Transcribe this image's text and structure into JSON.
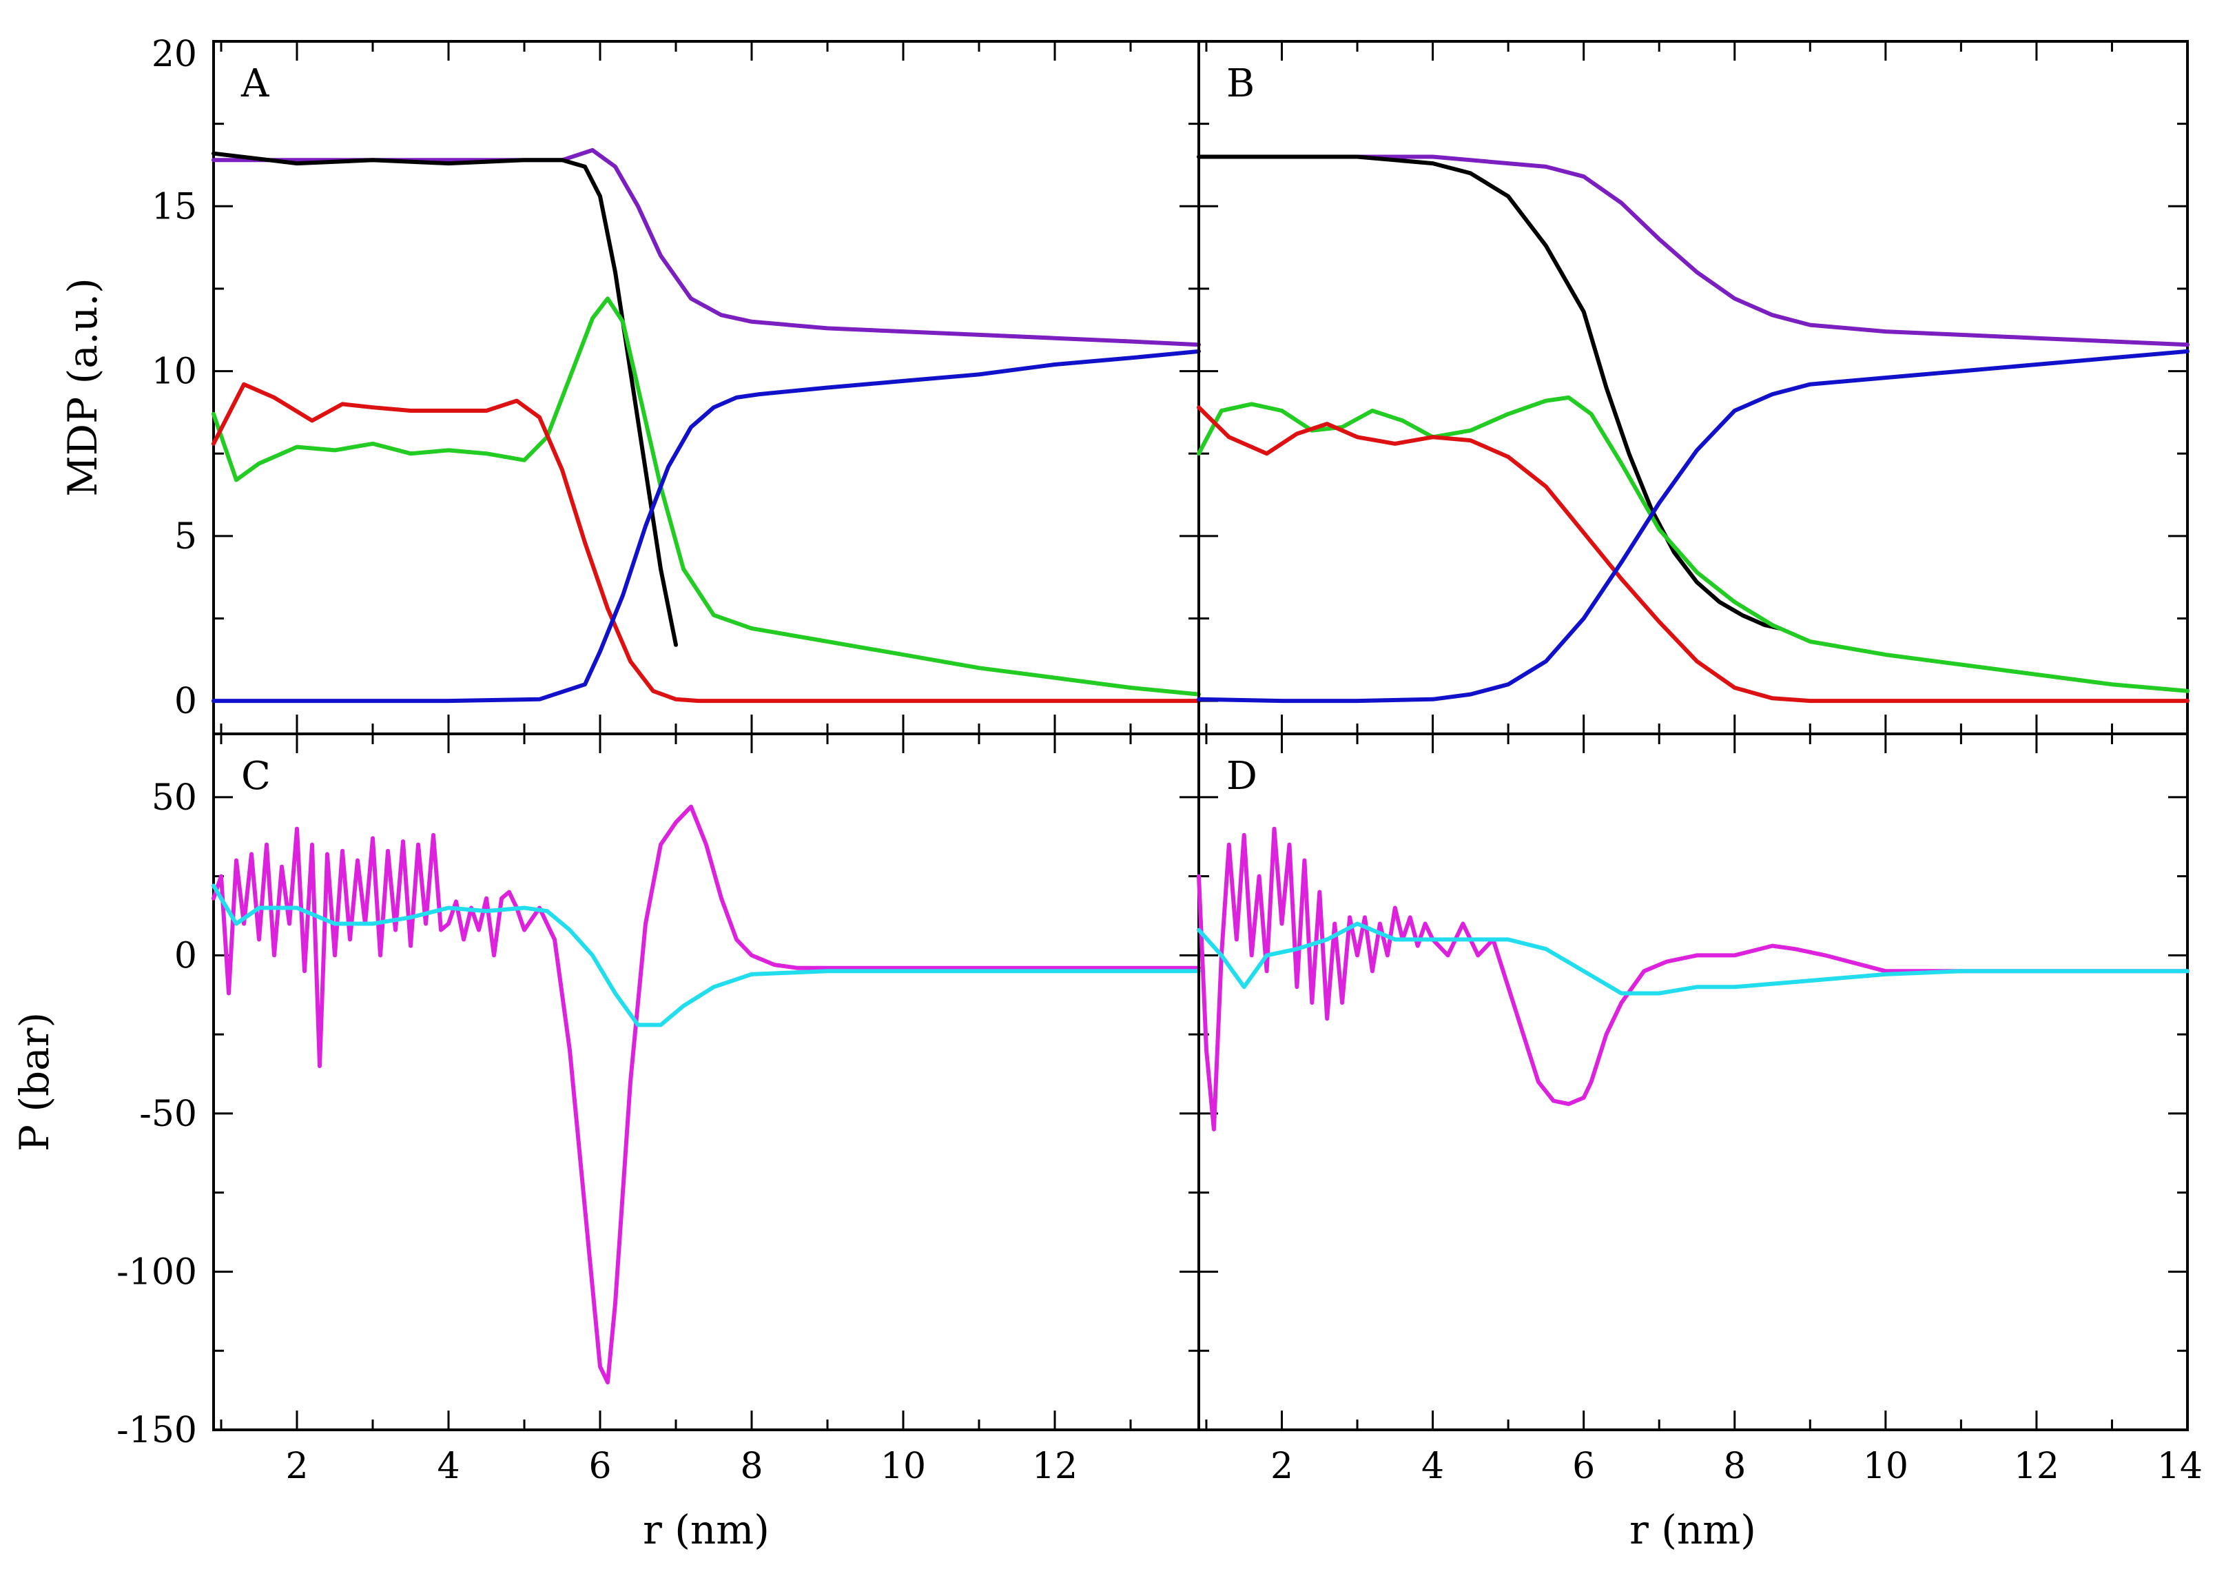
{
  "chart_data": [
    {
      "panel": "A",
      "type": "line",
      "label": "A",
      "xlabel": "",
      "ylabel": "MDP (a.u.)",
      "xlim": [
        0.9,
        13.9
      ],
      "ylim": [
        -1,
        20
      ],
      "y_ticks": [
        0,
        5,
        10,
        15,
        20
      ],
      "y_tick_labels": [
        "0",
        "5",
        "10",
        "15",
        "20"
      ],
      "series": [
        {
          "name": "purple",
          "color": "#7b1fc0",
          "x": [
            0.9,
            2,
            3,
            4,
            5,
            5.5,
            5.9,
            6.2,
            6.5,
            6.8,
            7.2,
            7.6,
            8,
            9,
            10,
            11,
            12,
            13,
            13.9
          ],
          "y": [
            16.4,
            16.4,
            16.4,
            16.4,
            16.4,
            16.4,
            16.7,
            16.2,
            15.0,
            13.5,
            12.2,
            11.7,
            11.5,
            11.3,
            11.2,
            11.1,
            11.0,
            10.9,
            10.8
          ]
        },
        {
          "name": "black",
          "color": "#000000",
          "x": [
            0.9,
            2,
            3,
            4,
            5,
            5.5,
            5.8,
            6.0,
            6.2,
            6.4,
            6.6,
            6.8,
            7.0
          ],
          "y": [
            16.6,
            16.3,
            16.4,
            16.3,
            16.4,
            16.4,
            16.2,
            15.3,
            13.0,
            10.0,
            7.0,
            4.0,
            1.7
          ]
        },
        {
          "name": "green",
          "color": "#22cc22",
          "x": [
            0.9,
            1.2,
            1.5,
            2,
            2.5,
            3,
            3.5,
            4,
            4.5,
            5,
            5.3,
            5.6,
            5.9,
            6.1,
            6.3,
            6.5,
            6.8,
            7.1,
            7.5,
            8,
            9,
            10,
            11,
            12,
            13,
            13.9
          ],
          "y": [
            8.7,
            6.7,
            7.2,
            7.7,
            7.6,
            7.8,
            7.5,
            7.6,
            7.5,
            7.3,
            8.0,
            9.8,
            11.6,
            12.2,
            11.5,
            9.5,
            6.5,
            4.0,
            2.6,
            2.2,
            1.8,
            1.4,
            1.0,
            0.7,
            0.4,
            0.2
          ]
        },
        {
          "name": "red",
          "color": "#dd1111",
          "x": [
            0.9,
            1.3,
            1.7,
            2.2,
            2.6,
            3,
            3.5,
            4,
            4.5,
            4.9,
            5.2,
            5.5,
            5.8,
            6.1,
            6.4,
            6.7,
            7.0,
            7.3,
            8,
            10,
            12,
            13.9
          ],
          "y": [
            7.8,
            9.6,
            9.2,
            8.5,
            9.0,
            8.9,
            8.8,
            8.8,
            8.8,
            9.1,
            8.6,
            7.0,
            4.8,
            2.8,
            1.2,
            0.3,
            0.05,
            0.0,
            0.0,
            0.0,
            0.0,
            0.0
          ]
        },
        {
          "name": "blue",
          "color": "#1111cc",
          "x": [
            0.9,
            2,
            4,
            5.2,
            5.8,
            6.0,
            6.3,
            6.6,
            6.9,
            7.2,
            7.5,
            7.8,
            8.1,
            9,
            10,
            11,
            12,
            13,
            13.9
          ],
          "y": [
            0.0,
            0.0,
            0.0,
            0.05,
            0.5,
            1.5,
            3.2,
            5.3,
            7.1,
            8.3,
            8.9,
            9.2,
            9.3,
            9.5,
            9.7,
            9.9,
            10.2,
            10.4,
            10.6
          ]
        }
      ]
    },
    {
      "panel": "B",
      "type": "line",
      "label": "B",
      "xlabel": "",
      "ylabel": "",
      "xlim": [
        0.9,
        14
      ],
      "ylim": [
        -1,
        20
      ],
      "series": [
        {
          "name": "purple",
          "color": "#7b1fc0",
          "x": [
            0.9,
            2,
            3,
            4,
            5,
            5.5,
            6,
            6.5,
            7,
            7.5,
            8,
            8.5,
            9,
            10,
            11,
            12,
            13,
            14
          ],
          "y": [
            16.5,
            16.5,
            16.5,
            16.5,
            16.3,
            16.2,
            15.9,
            15.1,
            14.0,
            13.0,
            12.2,
            11.7,
            11.4,
            11.2,
            11.1,
            11.0,
            10.9,
            10.8
          ]
        },
        {
          "name": "black",
          "color": "#000000",
          "x": [
            0.9,
            2,
            3,
            4,
            4.5,
            5,
            5.5,
            6,
            6.3,
            6.6,
            6.9,
            7.2,
            7.5,
            7.8,
            8.1,
            8.4,
            8.6
          ],
          "y": [
            16.5,
            16.5,
            16.5,
            16.3,
            16.0,
            15.3,
            13.8,
            11.8,
            9.5,
            7.5,
            5.8,
            4.5,
            3.6,
            3.0,
            2.6,
            2.3,
            2.2
          ]
        },
        {
          "name": "green",
          "color": "#22cc22",
          "x": [
            0.9,
            1.2,
            1.6,
            2,
            2.4,
            2.8,
            3.2,
            3.6,
            4,
            4.5,
            5,
            5.5,
            5.8,
            6.1,
            6.5,
            7,
            7.5,
            8,
            8.5,
            9,
            10,
            11,
            12,
            13,
            14
          ],
          "y": [
            7.5,
            8.8,
            9.0,
            8.8,
            8.2,
            8.3,
            8.8,
            8.5,
            8.0,
            8.2,
            8.7,
            9.1,
            9.2,
            8.7,
            7.2,
            5.2,
            3.9,
            3.0,
            2.3,
            1.8,
            1.4,
            1.1,
            0.8,
            0.5,
            0.3
          ]
        },
        {
          "name": "red",
          "color": "#dd1111",
          "x": [
            0.9,
            1.3,
            1.8,
            2.2,
            2.6,
            3,
            3.5,
            4,
            4.5,
            5,
            5.5,
            6,
            6.5,
            7,
            7.5,
            8,
            8.5,
            9,
            10,
            12,
            14
          ],
          "y": [
            8.9,
            8.0,
            7.5,
            8.1,
            8.4,
            8.0,
            7.8,
            8.0,
            7.9,
            7.4,
            6.5,
            5.1,
            3.7,
            2.4,
            1.2,
            0.4,
            0.08,
            0.0,
            0.0,
            0.0,
            0.0
          ]
        },
        {
          "name": "blue",
          "color": "#1111cc",
          "x": [
            0.9,
            2,
            3,
            4,
            4.5,
            5,
            5.5,
            6,
            6.5,
            7,
            7.5,
            8,
            8.5,
            9,
            10,
            11,
            12,
            13,
            14
          ],
          "y": [
            0.05,
            0.0,
            0.0,
            0.05,
            0.2,
            0.5,
            1.2,
            2.5,
            4.2,
            6.0,
            7.6,
            8.8,
            9.3,
            9.6,
            9.8,
            10.0,
            10.2,
            10.4,
            10.6
          ]
        }
      ]
    },
    {
      "panel": "C",
      "type": "line",
      "label": "C",
      "xlabel": "r (nm)",
      "ylabel": "P (bar)",
      "xlim": [
        0.9,
        13.9
      ],
      "ylim": [
        -150,
        70
      ],
      "x_ticks": [
        2,
        4,
        6,
        8,
        10,
        12
      ],
      "x_tick_labels": [
        "2",
        "4",
        "6",
        "8",
        "10",
        "12"
      ],
      "y_ticks": [
        50,
        0,
        -50,
        -100,
        -150
      ],
      "y_tick_labels": [
        "50",
        "0",
        "-50",
        "-100",
        "-150"
      ],
      "series": [
        {
          "name": "magenta",
          "color": "#dd22dd",
          "x": [
            0.9,
            1.0,
            1.1,
            1.2,
            1.3,
            1.4,
            1.5,
            1.6,
            1.7,
            1.8,
            1.9,
            2.0,
            2.1,
            2.2,
            2.3,
            2.4,
            2.5,
            2.6,
            2.7,
            2.8,
            2.9,
            3.0,
            3.1,
            3.2,
            3.3,
            3.4,
            3.5,
            3.6,
            3.7,
            3.8,
            3.9,
            4.0,
            4.1,
            4.2,
            4.3,
            4.4,
            4.5,
            4.6,
            4.7,
            4.8,
            4.9,
            5.0,
            5.2,
            5.4,
            5.6,
            5.8,
            6.0,
            6.1,
            6.2,
            6.4,
            6.6,
            6.8,
            7.0,
            7.2,
            7.4,
            7.6,
            7.8,
            8.0,
            8.3,
            8.6,
            9,
            10,
            11,
            12,
            13,
            13.9
          ],
          "y": [
            18,
            25,
            -12,
            30,
            10,
            32,
            5,
            35,
            0,
            28,
            10,
            40,
            -5,
            35,
            -35,
            32,
            0,
            33,
            5,
            30,
            10,
            37,
            0,
            33,
            8,
            36,
            3,
            35,
            10,
            38,
            8,
            10,
            17,
            5,
            15,
            8,
            18,
            0,
            18,
            20,
            15,
            8,
            15,
            5,
            -30,
            -80,
            -130,
            -135,
            -110,
            -40,
            10,
            35,
            42,
            47,
            35,
            18,
            5,
            0,
            -3,
            -4,
            -4,
            -4,
            -4,
            -4,
            -4,
            -4
          ]
        },
        {
          "name": "cyan",
          "color": "#22ddee",
          "x": [
            0.9,
            1.2,
            1.5,
            2,
            2.5,
            3,
            3.5,
            4,
            4.5,
            5,
            5.3,
            5.6,
            5.9,
            6.2,
            6.5,
            6.8,
            7.1,
            7.5,
            8,
            9,
            10,
            11,
            12,
            13,
            13.9
          ],
          "y": [
            22,
            10,
            15,
            15,
            10,
            10,
            12,
            15,
            14,
            15,
            14,
            8,
            0,
            -12,
            -22,
            -22,
            -16,
            -10,
            -6,
            -5,
            -5,
            -5,
            -5,
            -5,
            -5
          ]
        }
      ]
    },
    {
      "panel": "D",
      "type": "line",
      "label": "D",
      "xlabel": "r (nm)",
      "ylabel": "",
      "xlim": [
        0.9,
        14
      ],
      "ylim": [
        -150,
        70
      ],
      "x_ticks": [
        2,
        4,
        6,
        8,
        10,
        12,
        14
      ],
      "x_tick_labels": [
        "2",
        "4",
        "6",
        "8",
        "10",
        "12",
        "14"
      ],
      "series": [
        {
          "name": "magenta",
          "color": "#dd22dd",
          "x": [
            0.9,
            1.0,
            1.1,
            1.2,
            1.3,
            1.4,
            1.5,
            1.6,
            1.7,
            1.8,
            1.9,
            2.0,
            2.1,
            2.2,
            2.3,
            2.4,
            2.5,
            2.6,
            2.7,
            2.8,
            2.9,
            3.0,
            3.1,
            3.2,
            3.3,
            3.4,
            3.5,
            3.6,
            3.7,
            3.8,
            3.9,
            4.0,
            4.2,
            4.4,
            4.6,
            4.8,
            5.0,
            5.2,
            5.4,
            5.6,
            5.8,
            6.0,
            6.1,
            6.3,
            6.5,
            6.8,
            7.1,
            7.5,
            8,
            8.5,
            8.8,
            9.2,
            10,
            11,
            12,
            13,
            14
          ],
          "y": [
            25,
            -30,
            -55,
            0,
            35,
            5,
            38,
            0,
            25,
            -5,
            40,
            10,
            35,
            -10,
            30,
            -15,
            20,
            -20,
            10,
            -15,
            12,
            0,
            12,
            -5,
            10,
            0,
            15,
            5,
            12,
            3,
            10,
            5,
            0,
            10,
            0,
            5,
            -10,
            -25,
            -40,
            -46,
            -47,
            -45,
            -40,
            -25,
            -15,
            -5,
            -2,
            0,
            0,
            3,
            2,
            0,
            -5,
            -5,
            -5,
            -5,
            -5
          ]
        },
        {
          "name": "cyan",
          "color": "#22ddee",
          "x": [
            0.9,
            1.2,
            1.5,
            1.8,
            2.2,
            2.6,
            3.0,
            3.5,
            4,
            4.5,
            5,
            5.5,
            6,
            6.5,
            7,
            7.5,
            8,
            9,
            10,
            11,
            12,
            13,
            14
          ],
          "y": [
            8,
            0,
            -10,
            0,
            2,
            5,
            10,
            5,
            5,
            5,
            5,
            2,
            -5,
            -12,
            -12,
            -10,
            -10,
            -8,
            -6,
            -5,
            -5,
            -5,
            -5
          ]
        }
      ]
    }
  ]
}
